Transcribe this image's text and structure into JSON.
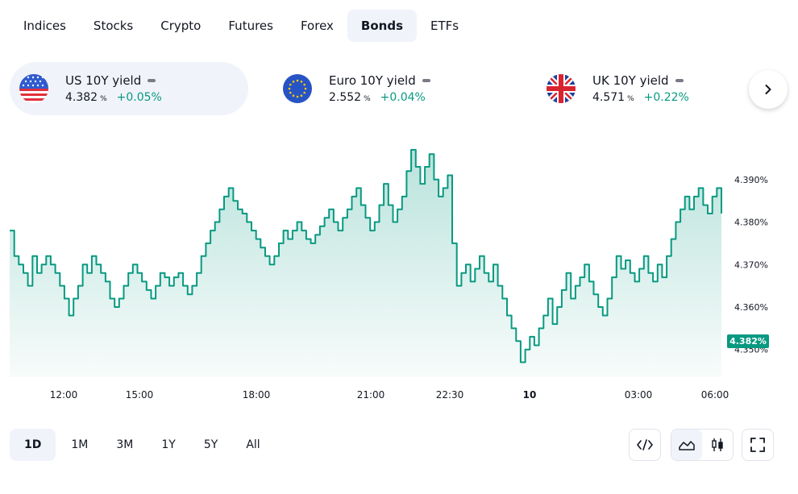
{
  "tabs": [
    {
      "label": "Indices",
      "active": false
    },
    {
      "label": "Stocks",
      "active": false
    },
    {
      "label": "Crypto",
      "active": false
    },
    {
      "label": "Futures",
      "active": false
    },
    {
      "label": "Forex",
      "active": false
    },
    {
      "label": "Bonds",
      "active": true
    },
    {
      "label": "ETFs",
      "active": false
    }
  ],
  "cards": [
    {
      "title": "US 10Y yield",
      "price": "4.382",
      "unit": "%",
      "change": "+0.05%",
      "flag": "us-flag-icon",
      "active": true
    },
    {
      "title": "Euro 10Y yield",
      "price": "2.552",
      "unit": "%",
      "change": "+0.04%",
      "flag": "eu-flag-icon",
      "active": false
    },
    {
      "title": "UK 10Y yield",
      "price": "4.571",
      "unit": "%",
      "change": "+0.22%",
      "flag": "uk-flag-icon",
      "active": false
    }
  ],
  "colors": {
    "line": "#089981",
    "change_positive": "#089981",
    "active_bg": "#f0f3fa",
    "text": "#131722"
  },
  "chart_data": {
    "type": "area",
    "series": [
      {
        "values": [
          4.378,
          4.372,
          4.37,
          4.368,
          4.365,
          4.372,
          4.368,
          4.37,
          4.372,
          4.37,
          4.368,
          4.365,
          4.362,
          4.358,
          4.362,
          4.365,
          4.37,
          4.368,
          4.372,
          4.37,
          4.368,
          4.366,
          4.362,
          4.36,
          4.362,
          4.365,
          4.368,
          4.37,
          4.368,
          4.366,
          4.364,
          4.362,
          4.365,
          4.368,
          4.367,
          4.365,
          4.367,
          4.368,
          4.365,
          4.363,
          4.365,
          4.368,
          4.372,
          4.375,
          4.378,
          4.38,
          4.383,
          4.386,
          4.388,
          4.385,
          4.383,
          4.382,
          4.38,
          4.378,
          4.376,
          4.374,
          4.372,
          4.37,
          4.372,
          4.375,
          4.378,
          4.376,
          4.378,
          4.38,
          4.378,
          4.376,
          4.375,
          4.377,
          4.379,
          4.381,
          4.383,
          4.38,
          4.378,
          4.381,
          4.383,
          4.386,
          4.388,
          4.384,
          4.381,
          4.378,
          4.38,
          4.384,
          4.389,
          4.384,
          4.38,
          4.383,
          4.386,
          4.392,
          4.397,
          4.393,
          4.389,
          4.393,
          4.396,
          4.39,
          4.386,
          4.388,
          4.391,
          4.375,
          4.365,
          4.368,
          4.37,
          4.366,
          4.369,
          4.372,
          4.368,
          4.366,
          4.37,
          4.365,
          4.362,
          4.358,
          4.355,
          4.352,
          4.347,
          4.35,
          4.353,
          4.351,
          4.355,
          4.358,
          4.362,
          4.356,
          4.36,
          4.364,
          4.368,
          4.362,
          4.365,
          4.367,
          4.37,
          4.366,
          4.363,
          4.36,
          4.358,
          4.362,
          4.367,
          4.372,
          4.369,
          4.371,
          4.368,
          4.366,
          4.369,
          4.372,
          4.368,
          4.366,
          4.37,
          4.367,
          4.372,
          4.376,
          4.38,
          4.383,
          4.386,
          4.383,
          4.386,
          4.388,
          4.384,
          4.382,
          4.386,
          4.388,
          4.382
        ]
      }
    ],
    "x_ticks": [
      "12:00",
      "15:00",
      "18:00",
      "21:00",
      "22:30",
      "10",
      "03:00",
      "06:00"
    ],
    "y_ticks": [
      "4.390%",
      "4.380%",
      "4.370%",
      "4.360%",
      "4.350%"
    ],
    "y_tick_values": [
      4.39,
      4.38,
      4.37,
      4.36,
      4.35
    ],
    "ylim": [
      4.3435,
      4.3985
    ],
    "last_value_label": "4.382%",
    "grid": false
  },
  "ranges": [
    {
      "label": "1D",
      "active": true
    },
    {
      "label": "1M",
      "active": false
    },
    {
      "label": "3M",
      "active": false
    },
    {
      "label": "1Y",
      "active": false
    },
    {
      "label": "5Y",
      "active": false
    },
    {
      "label": "All",
      "active": false
    }
  ],
  "toolbar": {
    "embed_icon": "code-icon",
    "area_icon": "area-chart-icon",
    "candles_icon": "candlestick-icon",
    "fullscreen_icon": "fullscreen-icon"
  }
}
